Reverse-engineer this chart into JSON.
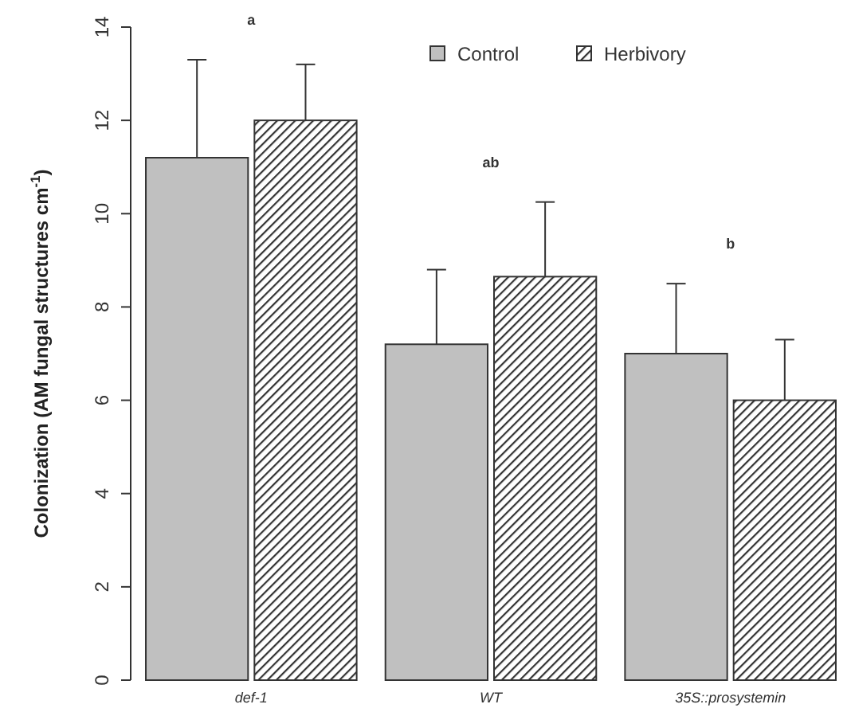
{
  "chart_data": {
    "type": "bar",
    "ylabel": "Colonization (AM fungal structures cm$^{-1}$)",
    "categories": [
      "def-1",
      "WT",
      "35S::prosystemin"
    ],
    "series": [
      {
        "name": "Control",
        "color": "#c0c0c0",
        "values": [
          11.2,
          7.2,
          7.0
        ],
        "errors": [
          [
            11.2,
            13.3
          ],
          [
            7.2,
            8.8
          ],
          [
            7.0,
            8.5
          ]
        ]
      },
      {
        "name": "Herbivory",
        "color": "#333333",
        "values": [
          12.0,
          8.65,
          6.0
        ],
        "errors": [
          [
            12.0,
            13.2
          ],
          [
            8.65,
            10.25
          ],
          [
            6.0,
            7.3
          ]
        ]
      }
    ],
    "ylim": [
      0,
      14
    ],
    "yticks": [
      0,
      2,
      4,
      6,
      8,
      10,
      12,
      14
    ],
    "grid": false,
    "legend": "top right",
    "annotations": [
      "a",
      "ab",
      "b"
    ]
  }
}
